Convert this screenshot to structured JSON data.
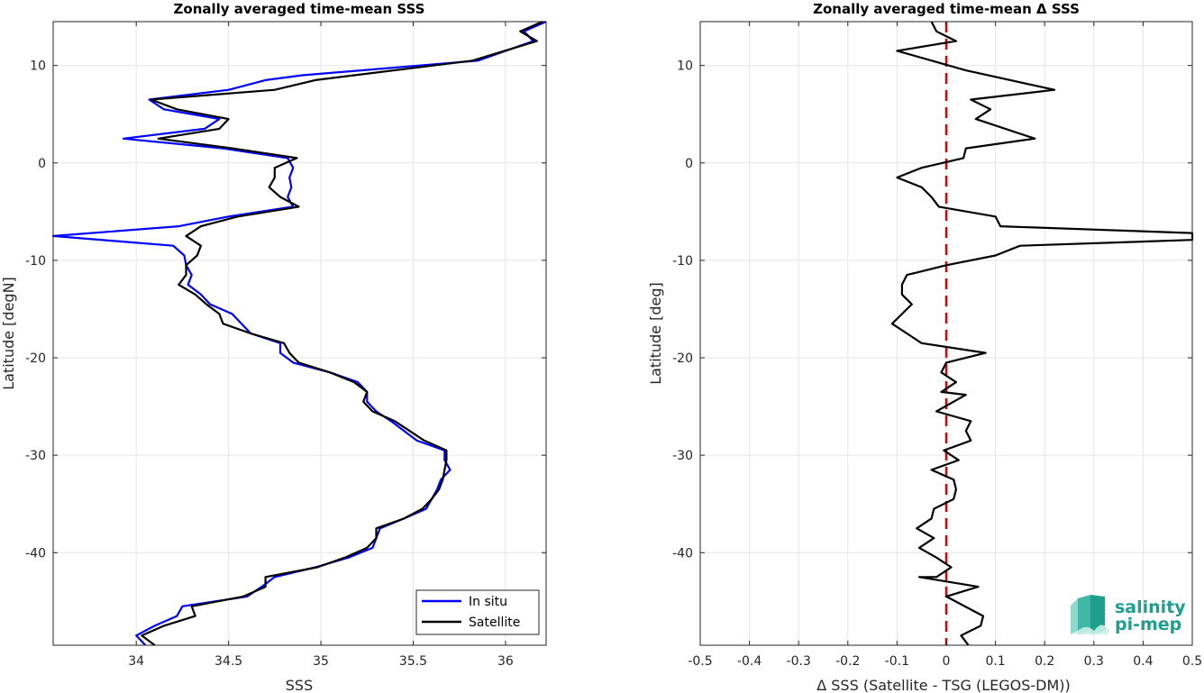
{
  "chart_data": [
    {
      "type": "line",
      "title": "Zonally averaged time-mean SSS",
      "xlabel": "SSS",
      "ylabel": "Latitude [degN]",
      "xlim": [
        33.55,
        36.22
      ],
      "ylim": [
        -49.5,
        14.5
      ],
      "xticks": [
        34,
        34.5,
        35,
        35.5,
        36
      ],
      "xtick_labels": [
        "34",
        "34.5",
        "35",
        "35.5",
        "36"
      ],
      "yticks": [
        10,
        0,
        -10,
        -20,
        -30,
        -40
      ],
      "ytick_labels": [
        "10",
        "0",
        "-10",
        "-20",
        "-30",
        "-40"
      ],
      "grid": true,
      "legend_position": "bottom-right",
      "series": [
        {
          "name": "In situ",
          "color": "#0000ff",
          "points": [
            [
              36.22,
              14.5
            ],
            [
              36.1,
              13.5
            ],
            [
              36.15,
              12.5
            ],
            [
              35.85,
              10.5
            ],
            [
              34.9,
              9.0
            ],
            [
              34.7,
              8.5
            ],
            [
              34.5,
              7.5
            ],
            [
              34.07,
              6.5
            ],
            [
              34.15,
              5.5
            ],
            [
              34.45,
              4.5
            ],
            [
              34.37,
              3.5
            ],
            [
              33.93,
              2.5
            ],
            [
              34.47,
              1.5
            ],
            [
              34.82,
              0.5
            ],
            [
              34.85,
              -0.5
            ],
            [
              34.83,
              -1.5
            ],
            [
              34.84,
              -2.5
            ],
            [
              34.82,
              -3.5
            ],
            [
              34.85,
              -4.5
            ],
            [
              34.5,
              -5.5
            ],
            [
              34.23,
              -6.5
            ],
            [
              33.55,
              -7.5
            ],
            [
              34.2,
              -8.5
            ],
            [
              34.26,
              -9.5
            ],
            [
              34.27,
              -10.5
            ],
            [
              34.3,
              -11.5
            ],
            [
              34.28,
              -12.5
            ],
            [
              34.35,
              -13.5
            ],
            [
              34.4,
              -14.5
            ],
            [
              34.52,
              -15.5
            ],
            [
              34.57,
              -16.5
            ],
            [
              34.62,
              -17.5
            ],
            [
              34.78,
              -18.5
            ],
            [
              34.78,
              -19.5
            ],
            [
              34.85,
              -20.5
            ],
            [
              35.05,
              -21.5
            ],
            [
              35.2,
              -22.5
            ],
            [
              35.25,
              -23.5
            ],
            [
              35.25,
              -24.5
            ],
            [
              35.3,
              -25.5
            ],
            [
              35.38,
              -26.5
            ],
            [
              35.45,
              -27.5
            ],
            [
              35.52,
              -28.5
            ],
            [
              35.67,
              -29.5
            ],
            [
              35.67,
              -30.5
            ],
            [
              35.7,
              -31.5
            ],
            [
              35.65,
              -32.5
            ],
            [
              35.63,
              -33.5
            ],
            [
              35.6,
              -34.5
            ],
            [
              35.57,
              -35.5
            ],
            [
              35.45,
              -36.5
            ],
            [
              35.32,
              -37.5
            ],
            [
              35.3,
              -38.5
            ],
            [
              35.28,
              -39.5
            ],
            [
              35.15,
              -40.5
            ],
            [
              34.97,
              -41.5
            ],
            [
              34.75,
              -42.5
            ],
            [
              34.68,
              -43.5
            ],
            [
              34.6,
              -44.5
            ],
            [
              34.25,
              -45.5
            ],
            [
              34.22,
              -46.5
            ],
            [
              34.1,
              -47.5
            ],
            [
              34.0,
              -48.5
            ],
            [
              34.05,
              -49.5
            ]
          ]
        },
        {
          "name": "Satellite",
          "color": "#000000",
          "points": [
            [
              36.2,
              14.5
            ],
            [
              36.08,
              13.5
            ],
            [
              36.17,
              12.5
            ],
            [
              35.82,
              10.5
            ],
            [
              34.97,
              8.5
            ],
            [
              34.75,
              7.5
            ],
            [
              34.08,
              6.5
            ],
            [
              34.22,
              5.5
            ],
            [
              34.5,
              4.5
            ],
            [
              34.45,
              3.5
            ],
            [
              34.12,
              2.5
            ],
            [
              34.52,
              1.5
            ],
            [
              34.87,
              0.5
            ],
            [
              34.75,
              -0.5
            ],
            [
              34.75,
              -1.5
            ],
            [
              34.72,
              -2.5
            ],
            [
              34.78,
              -3.5
            ],
            [
              34.88,
              -4.5
            ],
            [
              34.55,
              -5.5
            ],
            [
              34.35,
              -6.5
            ],
            [
              34.27,
              -7.5
            ],
            [
              34.35,
              -8.5
            ],
            [
              34.33,
              -9.5
            ],
            [
              34.27,
              -10.5
            ],
            [
              34.27,
              -11.5
            ],
            [
              34.23,
              -12.5
            ],
            [
              34.32,
              -13.5
            ],
            [
              34.38,
              -14.5
            ],
            [
              34.45,
              -15.5
            ],
            [
              34.47,
              -16.5
            ],
            [
              34.62,
              -17.5
            ],
            [
              34.8,
              -18.5
            ],
            [
              34.83,
              -19.5
            ],
            [
              34.88,
              -20.5
            ],
            [
              35.05,
              -21.5
            ],
            [
              35.18,
              -22.5
            ],
            [
              35.25,
              -23.5
            ],
            [
              35.23,
              -24.5
            ],
            [
              35.28,
              -25.5
            ],
            [
              35.4,
              -26.5
            ],
            [
              35.48,
              -27.5
            ],
            [
              35.56,
              -28.5
            ],
            [
              35.68,
              -29.5
            ],
            [
              35.68,
              -30.5
            ],
            [
              35.67,
              -31.5
            ],
            [
              35.66,
              -32.5
            ],
            [
              35.64,
              -33.5
            ],
            [
              35.6,
              -34.5
            ],
            [
              35.55,
              -35.5
            ],
            [
              35.45,
              -36.5
            ],
            [
              35.3,
              -37.5
            ],
            [
              35.3,
              -38.5
            ],
            [
              35.25,
              -39.5
            ],
            [
              35.13,
              -40.5
            ],
            [
              34.98,
              -41.5
            ],
            [
              34.7,
              -42.5
            ],
            [
              34.7,
              -43.5
            ],
            [
              34.58,
              -44.5
            ],
            [
              34.3,
              -45.5
            ],
            [
              34.32,
              -46.5
            ],
            [
              34.15,
              -47.5
            ],
            [
              34.03,
              -48.5
            ],
            [
              34.1,
              -49.5
            ]
          ]
        }
      ]
    },
    {
      "type": "line",
      "title": "Zonally averaged time-mean Δ SSS",
      "xlabel": "Δ SSS (Satellite - TSG (LEGOS-DM))",
      "ylabel": "Latitude [deg]",
      "xlim": [
        -0.5,
        0.5
      ],
      "ylim": [
        -49.5,
        14.5
      ],
      "xticks": [
        -0.5,
        -0.4,
        -0.3,
        -0.2,
        -0.1,
        0,
        0.1,
        0.2,
        0.3,
        0.4,
        0.5
      ],
      "xtick_labels": [
        "-0.5",
        "-0.4",
        "-0.3",
        "-0.2",
        "-0.1",
        "0",
        "0.1",
        "0.2",
        "0.3",
        "0.4",
        "0.5"
      ],
      "yticks": [
        10,
        0,
        -10,
        -20,
        -30,
        -40
      ],
      "ytick_labels": [
        "10",
        "0",
        "-10",
        "-20",
        "-30",
        "-40"
      ],
      "grid": true,
      "reference_line": {
        "x": 0,
        "color": "#dd0000",
        "style": "dashed"
      },
      "series": [
        {
          "name": "",
          "color": "#000000",
          "points": [
            [
              -0.03,
              14.5
            ],
            [
              -0.02,
              13.5
            ],
            [
              0.02,
              12.5
            ],
            [
              -0.1,
              11.5
            ],
            [
              0.04,
              9.5
            ],
            [
              0.22,
              7.5
            ],
            [
              0.05,
              6.5
            ],
            [
              0.09,
              5.5
            ],
            [
              0.06,
              4.5
            ],
            [
              0.18,
              2.5
            ],
            [
              0.04,
              1.5
            ],
            [
              0.035,
              0.5
            ],
            [
              -0.05,
              -0.5
            ],
            [
              -0.1,
              -1.5
            ],
            [
              -0.05,
              -2.5
            ],
            [
              -0.03,
              -3.5
            ],
            [
              -0.015,
              -4.5
            ],
            [
              0.1,
              -5.5
            ],
            [
              0.11,
              -6.5
            ],
            [
              0.5,
              -7.2
            ],
            [
              0.5,
              -7.9
            ],
            [
              0.15,
              -8.5
            ],
            [
              0.1,
              -9.5
            ],
            [
              0.0,
              -10.5
            ],
            [
              -0.08,
              -11.5
            ],
            [
              -0.09,
              -12.5
            ],
            [
              -0.09,
              -13.5
            ],
            [
              -0.07,
              -14.5
            ],
            [
              -0.09,
              -15.5
            ],
            [
              -0.11,
              -16.5
            ],
            [
              -0.08,
              -17.5
            ],
            [
              -0.05,
              -18.5
            ],
            [
              0.08,
              -19.5
            ],
            [
              0.0,
              -20.5
            ],
            [
              -0.01,
              -21.5
            ],
            [
              0.02,
              -22.5
            ],
            [
              -0.01,
              -23.5
            ],
            [
              0.04,
              -23.8
            ],
            [
              -0.02,
              -25.5
            ],
            [
              0.05,
              -26.5
            ],
            [
              0.04,
              -27.5
            ],
            [
              0.05,
              -28.5
            ],
            [
              -0.005,
              -29.5
            ],
            [
              0.025,
              -30.5
            ],
            [
              -0.03,
              -31.5
            ],
            [
              0.015,
              -32.5
            ],
            [
              0.02,
              -33.5
            ],
            [
              0.015,
              -34.5
            ],
            [
              -0.025,
              -35.5
            ],
            [
              -0.03,
              -36.5
            ],
            [
              -0.06,
              -37.5
            ],
            [
              -0.025,
              -38.5
            ],
            [
              -0.055,
              -39.5
            ],
            [
              -0.02,
              -40.5
            ],
            [
              0.01,
              -41.5
            ],
            [
              -0.02,
              -42.5
            ],
            [
              -0.055,
              -42.5
            ],
            [
              0.065,
              -43.5
            ],
            [
              0.0,
              -44.5
            ],
            [
              0.075,
              -46.5
            ],
            [
              0.07,
              -47.5
            ],
            [
              0.03,
              -48.5
            ],
            [
              0.045,
              -49.5
            ]
          ]
        }
      ]
    }
  ],
  "legend": {
    "items": [
      "In situ",
      "Satellite"
    ]
  },
  "logo": {
    "line1": "salinity",
    "line2": "pi-mep"
  }
}
